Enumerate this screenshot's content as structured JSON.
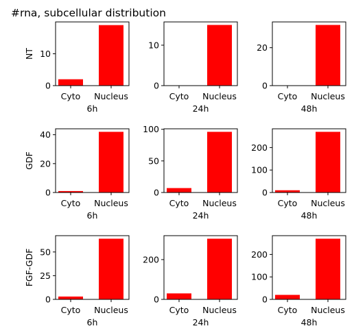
{
  "figure": {
    "title": "#rna, subcellular distribution",
    "bar_color": "#ff0000"
  },
  "chart_data": [
    {
      "type": "bar",
      "row": "NT",
      "col": "6h",
      "ylabel": "NT",
      "xlabel": "6h",
      "categories": [
        "Cyto",
        "Nucleus"
      ],
      "values": [
        2,
        19
      ],
      "ylim": [
        0,
        20
      ],
      "yticks": [
        0,
        10
      ]
    },
    {
      "type": "bar",
      "row": "NT",
      "col": "24h",
      "ylabel": "",
      "xlabel": "24h",
      "categories": [
        "Cyto",
        "Nucleus"
      ],
      "values": [
        0,
        15
      ],
      "ylim": [
        0,
        15.75
      ],
      "yticks": [
        0,
        10
      ]
    },
    {
      "type": "bar",
      "row": "NT",
      "col": "48h",
      "ylabel": "",
      "xlabel": "48h",
      "categories": [
        "Cyto",
        "Nucleus"
      ],
      "values": [
        0,
        32
      ],
      "ylim": [
        0,
        33.6
      ],
      "yticks": [
        0,
        20
      ]
    },
    {
      "type": "bar",
      "row": "GDF",
      "col": "6h",
      "ylabel": "GDF",
      "xlabel": "6h",
      "categories": [
        "Cyto",
        "Nucleus"
      ],
      "values": [
        1,
        42
      ],
      "ylim": [
        0,
        44.1
      ],
      "yticks": [
        0,
        20,
        40
      ]
    },
    {
      "type": "bar",
      "row": "GDF",
      "col": "24h",
      "ylabel": "",
      "xlabel": "24h",
      "categories": [
        "Cyto",
        "Nucleus"
      ],
      "values": [
        7,
        96
      ],
      "ylim": [
        0,
        100.8
      ],
      "yticks": [
        0,
        50,
        100
      ]
    },
    {
      "type": "bar",
      "row": "GDF",
      "col": "48h",
      "ylabel": "",
      "xlabel": "48h",
      "categories": [
        "Cyto",
        "Nucleus"
      ],
      "values": [
        10,
        270
      ],
      "ylim": [
        0,
        283.5
      ],
      "yticks": [
        0,
        100,
        200
      ]
    },
    {
      "type": "bar",
      "row": "FGF-GDF",
      "col": "6h",
      "ylabel": "FGF-GDF",
      "xlabel": "6h",
      "categories": [
        "Cyto",
        "Nucleus"
      ],
      "values": [
        3,
        64
      ],
      "ylim": [
        0,
        67.2
      ],
      "yticks": [
        0,
        25,
        50
      ]
    },
    {
      "type": "bar",
      "row": "FGF-GDF",
      "col": "24h",
      "ylabel": "",
      "xlabel": "24h",
      "categories": [
        "Cyto",
        "Nucleus"
      ],
      "values": [
        30,
        305
      ],
      "ylim": [
        0,
        320.25
      ],
      "yticks": [
        0,
        200
      ]
    },
    {
      "type": "bar",
      "row": "FGF-GDF",
      "col": "48h",
      "ylabel": "",
      "xlabel": "48h",
      "categories": [
        "Cyto",
        "Nucleus"
      ],
      "values": [
        20,
        270
      ],
      "ylim": [
        0,
        283.5
      ],
      "yticks": [
        0,
        100,
        200
      ]
    }
  ]
}
